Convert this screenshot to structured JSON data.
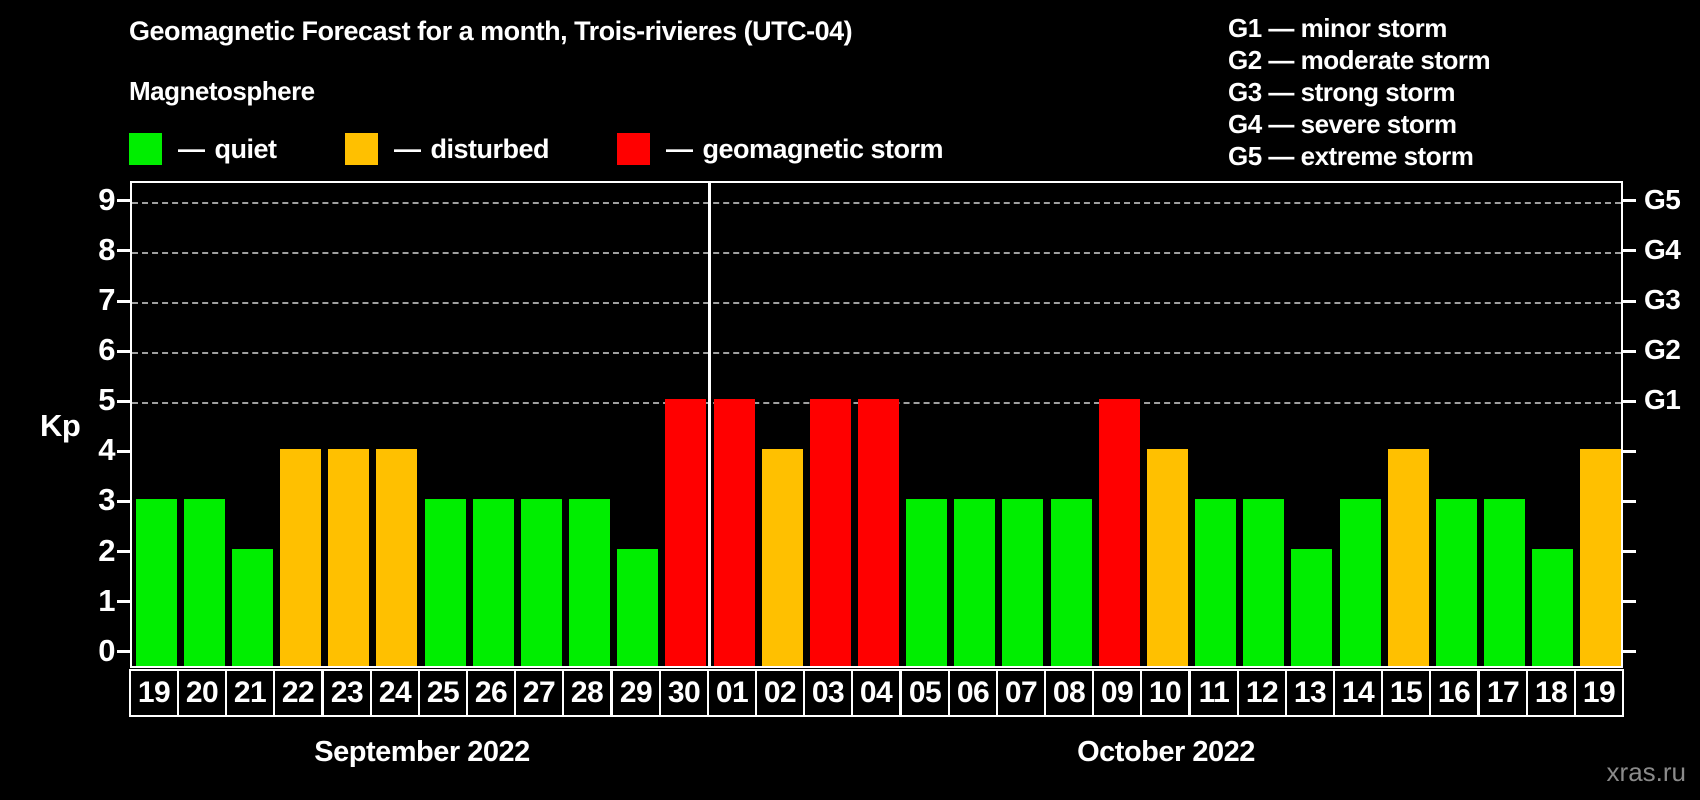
{
  "header": {
    "title": "Geomagnetic Forecast for a month, Trois-rivieres (UTC-04)"
  },
  "g_legend": {
    "items": [
      "G1 — minor storm",
      "G2 — moderate storm",
      "G3 — strong storm",
      "G4 — severe storm",
      "G5 — extreme storm"
    ]
  },
  "legend": {
    "title": "Magnetosphere",
    "dash": "—",
    "items": [
      {
        "label": "quiet",
        "color": "#00ee00"
      },
      {
        "label": "disturbed",
        "color": "#ffc000"
      },
      {
        "label": "geomagnetic storm",
        "color": "#ff0000"
      }
    ]
  },
  "chart_data": {
    "type": "bar",
    "title": "Geomagnetic Forecast for a month, Trois-rivieres (UTC-04)",
    "ylabel": "Kp",
    "yticks": [
      0,
      1,
      2,
      3,
      4,
      5,
      6,
      7,
      8,
      9
    ],
    "ylim": [
      0,
      9.4
    ],
    "grid_kp": [
      5,
      6,
      7,
      8,
      9
    ],
    "grid_color": "#9f9f9f",
    "right_axis": {
      "labels": [
        "G1",
        "G2",
        "G3",
        "G4",
        "G5"
      ],
      "at_kp": [
        5,
        6,
        7,
        8,
        9
      ]
    },
    "status_colors": {
      "quiet": "#00ee00",
      "disturbed": "#ffc000",
      "storm": "#ff0000"
    },
    "months": [
      {
        "label": "September 2022",
        "days": [
          {
            "day": "19",
            "kp": 3,
            "status": "quiet"
          },
          {
            "day": "20",
            "kp": 3,
            "status": "quiet"
          },
          {
            "day": "21",
            "kp": 2,
            "status": "quiet"
          },
          {
            "day": "22",
            "kp": 4,
            "status": "disturbed"
          },
          {
            "day": "23",
            "kp": 4,
            "status": "disturbed"
          },
          {
            "day": "24",
            "kp": 4,
            "status": "disturbed"
          },
          {
            "day": "25",
            "kp": 3,
            "status": "quiet"
          },
          {
            "day": "26",
            "kp": 3,
            "status": "quiet"
          },
          {
            "day": "27",
            "kp": 3,
            "status": "quiet"
          },
          {
            "day": "28",
            "kp": 3,
            "status": "quiet"
          },
          {
            "day": "29",
            "kp": 2,
            "status": "quiet"
          },
          {
            "day": "30",
            "kp": 5,
            "status": "storm"
          }
        ]
      },
      {
        "label": "October 2022",
        "days": [
          {
            "day": "01",
            "kp": 5,
            "status": "storm"
          },
          {
            "day": "02",
            "kp": 4,
            "status": "disturbed"
          },
          {
            "day": "03",
            "kp": 5,
            "status": "storm"
          },
          {
            "day": "04",
            "kp": 5,
            "status": "storm"
          },
          {
            "day": "05",
            "kp": 3,
            "status": "quiet"
          },
          {
            "day": "06",
            "kp": 3,
            "status": "quiet"
          },
          {
            "day": "07",
            "kp": 3,
            "status": "quiet"
          },
          {
            "day": "08",
            "kp": 3,
            "status": "quiet"
          },
          {
            "day": "09",
            "kp": 5,
            "status": "storm"
          },
          {
            "day": "10",
            "kp": 4,
            "status": "disturbed"
          },
          {
            "day": "11",
            "kp": 3,
            "status": "quiet"
          },
          {
            "day": "12",
            "kp": 3,
            "status": "quiet"
          },
          {
            "day": "13",
            "kp": 2,
            "status": "quiet"
          },
          {
            "day": "14",
            "kp": 3,
            "status": "quiet"
          },
          {
            "day": "15",
            "kp": 4,
            "status": "disturbed"
          },
          {
            "day": "16",
            "kp": 3,
            "status": "quiet"
          },
          {
            "day": "17",
            "kp": 3,
            "status": "quiet"
          },
          {
            "day": "18",
            "kp": 2,
            "status": "quiet"
          },
          {
            "day": "19",
            "kp": 4,
            "status": "disturbed"
          }
        ]
      }
    ]
  },
  "watermark": "xras.ru"
}
